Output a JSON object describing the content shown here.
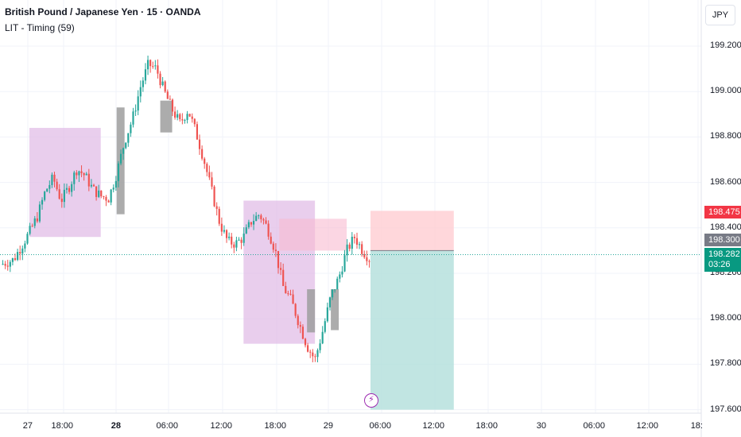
{
  "header": {
    "title": "British Pound / Japanese Yen · 15 · OANDA",
    "indicator": "LIT - Timing (59)"
  },
  "currency_button": "JPY",
  "price_axis": {
    "labels": [
      "199.200",
      "199.000",
      "198.800",
      "198.600",
      "198.400",
      "198.200",
      "198.000",
      "197.800",
      "197.600"
    ],
    "target_badge": "198.475",
    "entry_badge": "198.300",
    "current_badge": "198.282",
    "countdown": "03:26"
  },
  "time_axis": {
    "labels": [
      "27",
      "18:00",
      "28",
      "06:00",
      "12:00",
      "18:00",
      "29",
      "06:00",
      "12:00",
      "18:00",
      "30",
      "06:00",
      "12:00",
      "18:"
    ]
  },
  "colors": {
    "up": "#26a69a",
    "down": "#ef5350",
    "timing_box": "#e1bee7",
    "profit_zone": "#b2dfdb",
    "stop_zone": "#ffcdd2",
    "target_badge_bg": "#f23645",
    "entry_badge_bg": "#787b86",
    "current_badge_bg": "#089981"
  },
  "icons": {
    "event": "lightning-bolt-icon"
  },
  "chart_data": {
    "type": "candlestick",
    "symbol": "GBPJPY",
    "ylim": [
      197.6,
      199.25
    ],
    "price_path": [
      [
        0,
        198.24
      ],
      [
        3,
        198.26
      ],
      [
        5,
        198.32
      ],
      [
        7,
        198.38
      ],
      [
        9,
        198.45
      ],
      [
        11,
        198.56
      ],
      [
        13,
        198.62
      ],
      [
        15,
        198.52
      ],
      [
        17,
        198.58
      ],
      [
        19,
        198.66
      ],
      [
        21,
        198.63
      ],
      [
        23,
        198.57
      ],
      [
        25,
        198.54
      ],
      [
        27,
        198.53
      ],
      [
        29,
        198.64
      ],
      [
        31,
        198.78
      ],
      [
        33,
        198.88
      ],
      [
        35,
        199.02
      ],
      [
        37,
        199.12
      ],
      [
        39,
        199.1
      ],
      [
        41,
        199.0
      ],
      [
        43,
        198.92
      ],
      [
        45,
        198.86
      ],
      [
        47,
        198.92
      ],
      [
        49,
        198.82
      ],
      [
        51,
        198.7
      ],
      [
        53,
        198.56
      ],
      [
        55,
        198.42
      ],
      [
        57,
        198.34
      ],
      [
        59,
        198.33
      ],
      [
        61,
        198.36
      ],
      [
        63,
        198.43
      ],
      [
        65,
        198.46
      ],
      [
        67,
        198.4
      ],
      [
        69,
        198.3
      ],
      [
        71,
        198.14
      ],
      [
        73,
        198.08
      ],
      [
        75,
        197.98
      ],
      [
        77,
        197.88
      ],
      [
        79,
        197.82
      ],
      [
        81,
        197.95
      ],
      [
        83,
        198.1
      ],
      [
        85,
        198.18
      ],
      [
        87,
        198.3
      ],
      [
        89,
        198.36
      ],
      [
        91,
        198.3
      ],
      [
        93,
        198.26
      ]
    ],
    "x_range": [
      0,
      93
    ],
    "timing_boxes": [
      {
        "x0": 7,
        "x1": 25,
        "y0": 198.36,
        "y1": 198.84
      },
      {
        "x0": 61,
        "x1": 79,
        "y0": 197.89,
        "y1": 198.52
      }
    ],
    "pink_box": {
      "x0": 70,
      "x1": 87,
      "y0": 198.3,
      "y1": 198.44
    },
    "gray_markers": [
      {
        "x0": 29,
        "x1": 31,
        "y0": 198.46,
        "y1": 198.93
      },
      {
        "x0": 40,
        "x1": 43,
        "y0": 198.82,
        "y1": 198.96
      },
      {
        "x0": 77,
        "x1": 79,
        "y0": 197.94,
        "y1": 198.13
      },
      {
        "x0": 83,
        "x1": 85,
        "y0": 197.95,
        "y1": 198.13
      }
    ],
    "position": {
      "entry": 198.3,
      "target": 198.475,
      "stop": 197.6,
      "x0": 93,
      "x1": 114
    },
    "current_price": 198.282
  }
}
